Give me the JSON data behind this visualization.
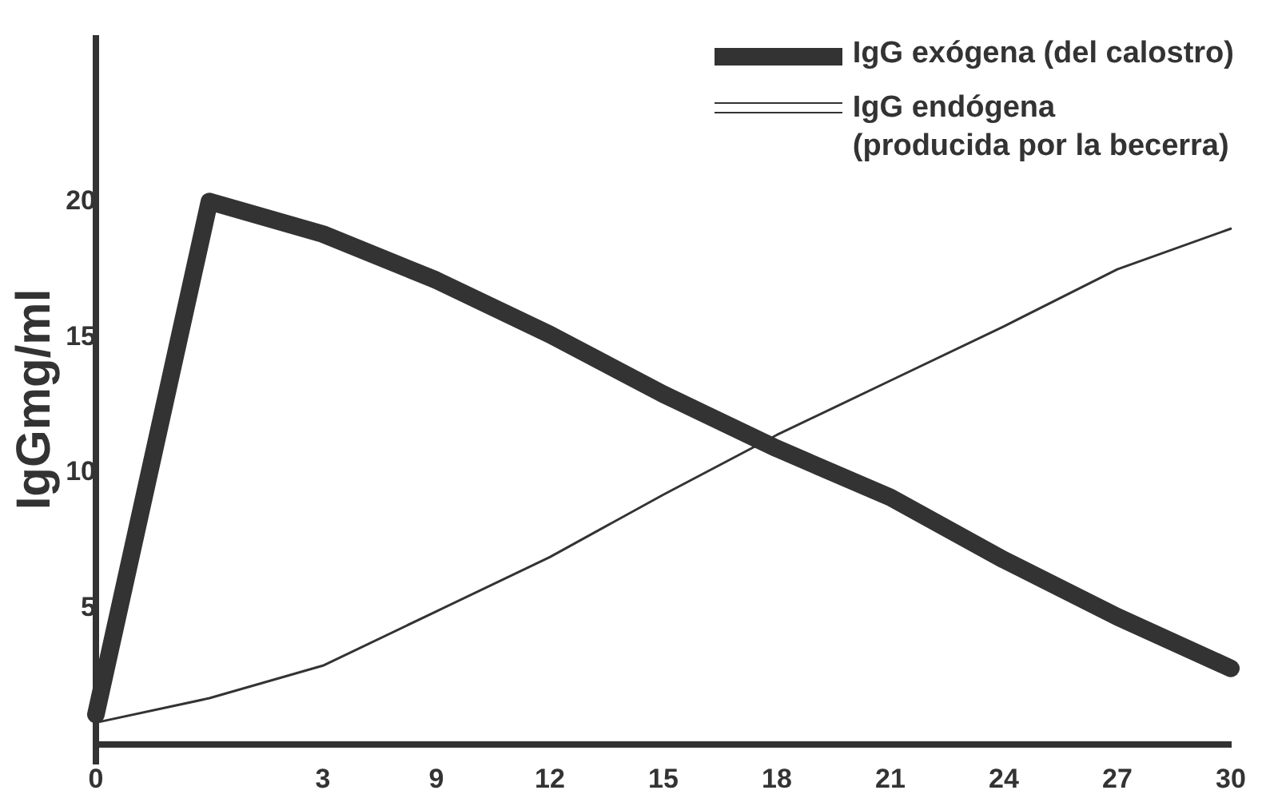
{
  "chart_data": {
    "type": "line",
    "ylabel": "IgGmg/ml",
    "categories": [
      "0",
      null,
      "3",
      "9",
      "12",
      "15",
      "18",
      "21",
      "24",
      "27",
      "30"
    ],
    "ylim": [
      -0.7,
      26
    ],
    "yticks": [
      5,
      10,
      15,
      20
    ],
    "grid": false,
    "legend": "top right",
    "marker": "none",
    "line_style": "solid",
    "series": [
      {
        "name": "IgG exógena (del calostro)",
        "color": "#333333",
        "values": [
          1.1,
          20,
          18.8,
          17.1,
          15.1,
          12.9,
          10.9,
          9.1,
          6.8,
          4.7,
          2.8
        ]
      },
      {
        "name": "IgG endógena\n(producida por la becerra)",
        "color": "#333333",
        "values": [
          0.8,
          1.7,
          2.9,
          4.9,
          6.9,
          9.2,
          11.4,
          13.4,
          15.4,
          17.5,
          19
        ]
      }
    ]
  }
}
